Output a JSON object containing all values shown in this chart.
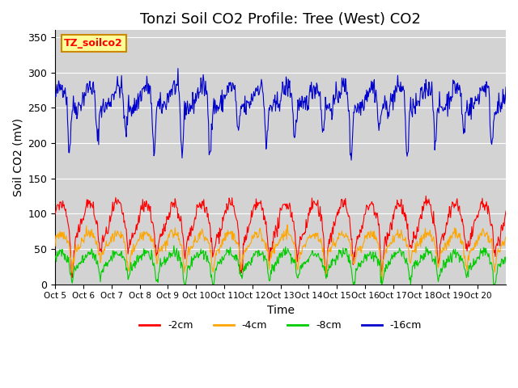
{
  "title": "Tonzi Soil CO2 Profile: Tree (West) CO2",
  "ylabel": "Soil CO2 (mV)",
  "xlabel": "Time",
  "legend_label": "TZ_soilco2",
  "series_labels": [
    "-2cm",
    "-4cm",
    "-8cm",
    "-16cm"
  ],
  "series_colors": [
    "#ff0000",
    "#ffa500",
    "#00cc00",
    "#0000cc"
  ],
  "x_tick_labels": [
    "Oct 5",
    "Oct 6",
    "Oct 7",
    "Oct 8",
    "Oct 9",
    "Oct 10",
    "Oct 11",
    "Oct 12",
    "Oct 13",
    "Oct 14",
    "Oct 15",
    "Oct 16",
    "Oct 17",
    "Oct 18",
    "Oct 19",
    "Oct 20"
  ],
  "ylim": [
    0,
    360
  ],
  "yticks": [
    0,
    50,
    100,
    150,
    200,
    250,
    300,
    350
  ],
  "bg_color": "#d3d3d3",
  "title_fontsize": 13,
  "axis_label_fontsize": 10,
  "legend_box_color": "#ffff99",
  "legend_box_edge": "#cc8800"
}
